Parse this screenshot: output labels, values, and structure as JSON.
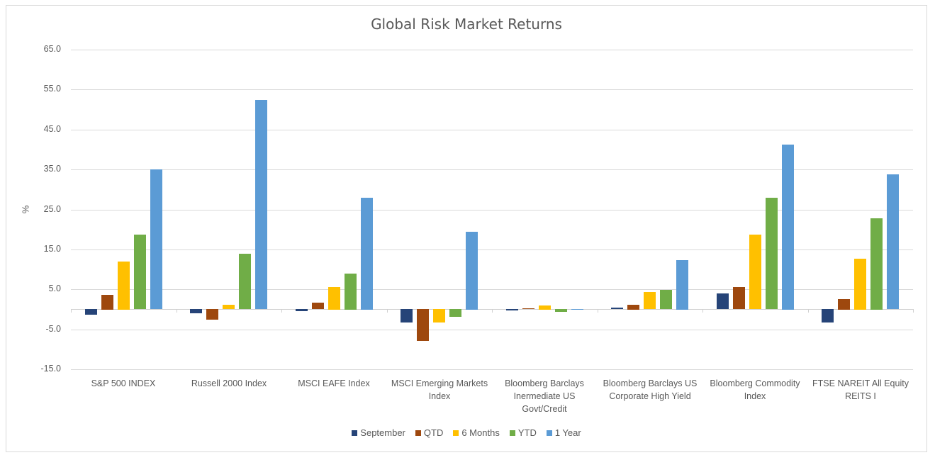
{
  "chart_data": {
    "type": "bar",
    "title": "Global Risk Market Returns",
    "xlabel": "",
    "ylabel": "%",
    "ylim": [
      -15,
      65
    ],
    "yticks": [
      "65.0",
      "55.0",
      "45.0",
      "35.0",
      "25.0",
      "15.0",
      "5.0",
      "-5.0",
      "-15.0"
    ],
    "grid": true,
    "legend_position": "bottom",
    "categories": [
      "S&P 500 INDEX",
      "Russell 2000 Index",
      "MSCI EAFE Index",
      "MSCI Emerging Markets Index",
      "Bloomberg Barclays Inermediate US Govt/Credit",
      "Bloomberg Barclays US Corporate High Yield",
      "Bloomberg Commodity Index",
      "FTSE NAREIT All Equity REITS I"
    ],
    "category_label_lines": [
      [
        "S&P 500 INDEX"
      ],
      [
        "Russell 2000 Index"
      ],
      [
        "MSCI EAFE Index"
      ],
      [
        "MSCI Emerging Markets",
        "Index"
      ],
      [
        "Bloomberg Barclays",
        "Inermediate US",
        "Govt/Credit"
      ],
      [
        "Bloomberg Barclays US",
        "Corporate High Yield"
      ],
      [
        "Bloomberg Commodity",
        "Index"
      ],
      [
        "FTSE NAREIT All Equity",
        "REITS I"
      ]
    ],
    "series": [
      {
        "name": "September",
        "color": "#264478",
        "values": [
          -1.4,
          -1.0,
          -0.6,
          -3.4,
          -0.4,
          0.4,
          3.9,
          -3.4
        ]
      },
      {
        "name": "QTD",
        "color": "#9E480E",
        "values": [
          3.7,
          -2.7,
          1.6,
          -7.9,
          0.2,
          1.2,
          5.5,
          2.6
        ]
      },
      {
        "name": "6 Months",
        "color": "#FFC000",
        "values": [
          12.0,
          1.1,
          5.6,
          -3.3,
          1.0,
          4.3,
          18.7,
          12.7
        ]
      },
      {
        "name": "YTD",
        "color": "#70AD47",
        "values": [
          18.7,
          13.9,
          9.0,
          -2.0,
          -0.7,
          4.8,
          27.9,
          22.8
        ]
      },
      {
        "name": "1 Year",
        "color": "#5B9BD5",
        "values": [
          35.0,
          52.4,
          28.0,
          19.5,
          -0.2,
          12.4,
          41.3,
          33.7
        ]
      }
    ]
  }
}
